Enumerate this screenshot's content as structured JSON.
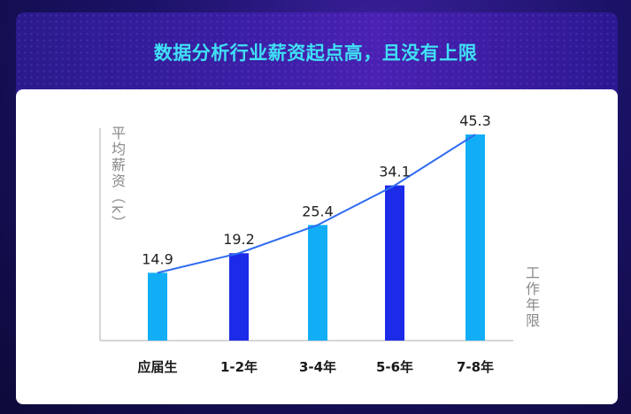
{
  "title": "数据分析行业薪资起点高，且没有上限",
  "colors": {
    "light_bar": "#12aef5",
    "dark_bar": "#1c2be8",
    "line": "#2f6cf0",
    "title": "#3fe0f5"
  },
  "chart_data": {
    "type": "bar",
    "title": "",
    "ylabel": "平均薪资（k）",
    "xlabel": "工作年限",
    "categories": [
      "应届生",
      "1-2年",
      "3-4年",
      "5-6年",
      "7-8年"
    ],
    "values": [
      14.9,
      19.2,
      25.4,
      34.1,
      45.3
    ],
    "value_labels": [
      "14.9",
      "19.2",
      "25.4",
      "34.1",
      "45.3"
    ],
    "ylim": [
      0,
      45.3
    ],
    "overlay": "line",
    "grid": false,
    "legend": "none"
  }
}
